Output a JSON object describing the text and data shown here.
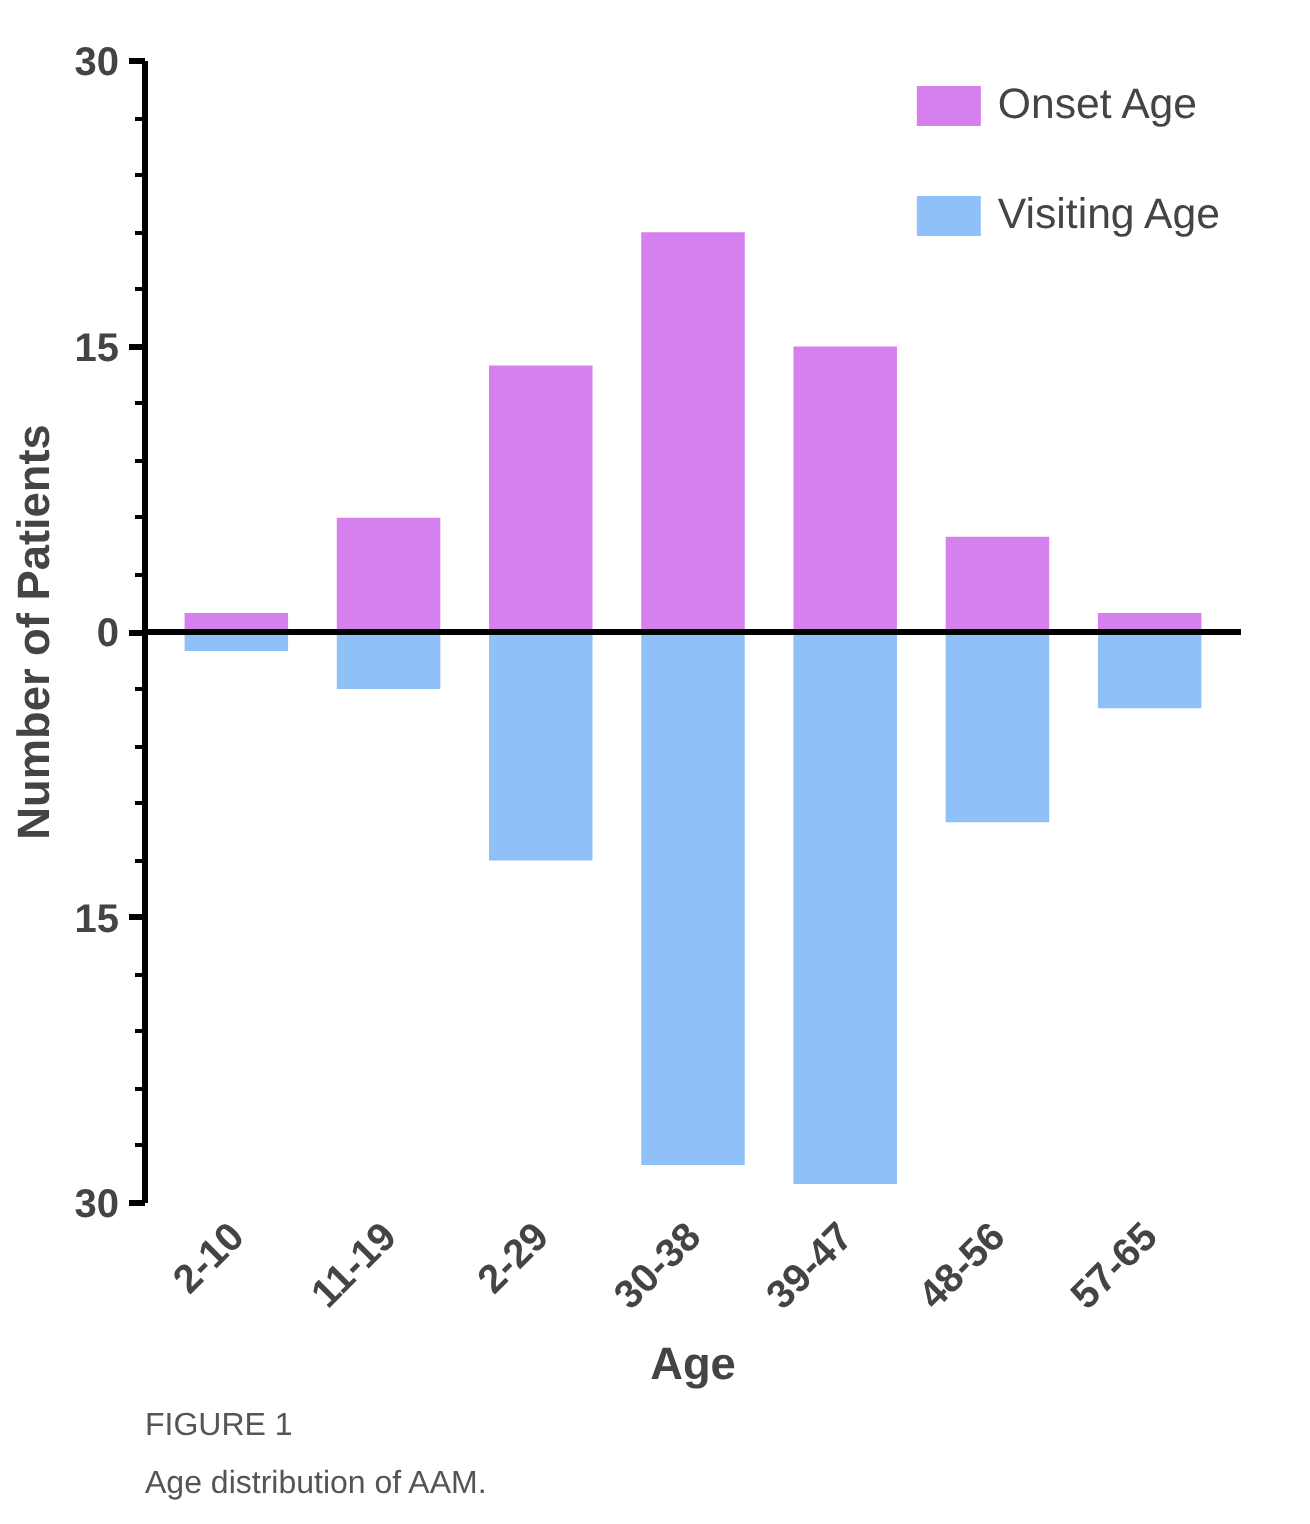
{
  "chart_data": {
    "type": "bar",
    "xlabel": "Age",
    "ylabel": "Number of Patients",
    "categories": [
      "2-10",
      "11-19",
      "2-29",
      "30-38",
      "39-47",
      "48-56",
      "57-65"
    ],
    "series": [
      {
        "name": "Onset Age",
        "color": "#d580ee",
        "values": [
          1,
          6,
          14,
          21,
          15,
          5,
          1
        ]
      },
      {
        "name": "Visiting Age",
        "color": "#90c0f8",
        "values": [
          -1,
          -3,
          -12,
          -28,
          -29,
          -10,
          -4
        ]
      }
    ],
    "ylim": [
      -30,
      30
    ],
    "yticks": [
      {
        "value": -30,
        "label": "30"
      },
      {
        "value": -15,
        "label": "15"
      },
      0,
      15,
      30
    ],
    "stacked": true,
    "ref_lines": [
      {
        "axis": "y",
        "value": 0,
        "color": "#000000"
      }
    ],
    "grid": false,
    "legend": "top right",
    "annotations": [
      "FIGURE 1",
      "Age distribution of AAM."
    ]
  }
}
